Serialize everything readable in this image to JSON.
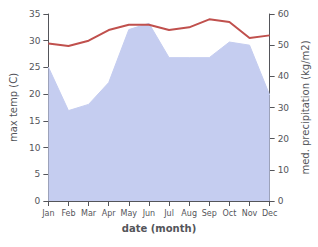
{
  "chart_data": {
    "type": "line",
    "categories": [
      "Jan",
      "Feb",
      "Mar",
      "Apr",
      "May",
      "Jun",
      "Jul",
      "Aug",
      "Sep",
      "Oct",
      "Nov",
      "Dec"
    ],
    "xlabel": "date (month)",
    "ylabel": "max temp (C)",
    "y2label": "med. precipitation (kg/m2)",
    "ylim": [
      0,
      35
    ],
    "yticks": [
      0,
      5,
      10,
      15,
      20,
      25,
      30,
      35
    ],
    "y2lim": [
      0,
      60
    ],
    "y2ticks": [
      0,
      10,
      20,
      30,
      40,
      50,
      60
    ],
    "grid": false,
    "series": [
      {
        "type": "area",
        "axis": "y2",
        "color": "#c5cdf0",
        "values": [
          43,
          29,
          31,
          38,
          55,
          57,
          46,
          46,
          46,
          51,
          50,
          34
        ]
      },
      {
        "type": "line",
        "color": "#c0504d",
        "values": [
          29.5,
          29.0,
          30.0,
          32.0,
          33.0,
          33.0,
          32.0,
          32.5,
          34.0,
          33.5,
          30.5,
          31.0
        ]
      }
    ]
  }
}
